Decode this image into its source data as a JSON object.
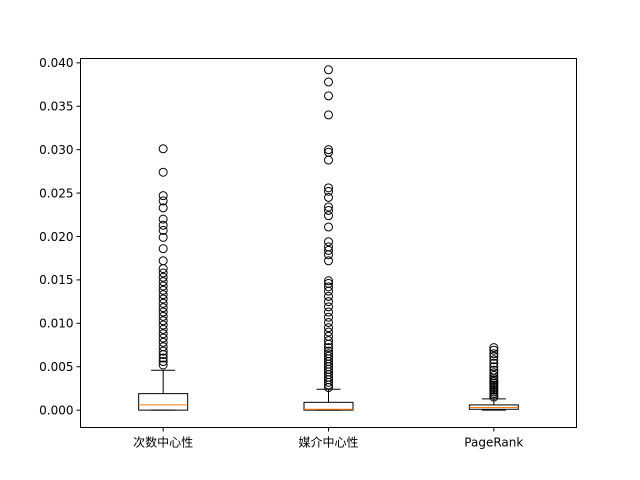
{
  "chart_data": {
    "type": "box",
    "categories": [
      "次数中心性",
      "媒介中心性",
      "PageRank"
    ],
    "ylim": [
      -0.002,
      0.0405
    ],
    "yticks": [
      0.0,
      0.005,
      0.01,
      0.015,
      0.02,
      0.025,
      0.03,
      0.035,
      0.04
    ],
    "ytick_labels": [
      "0.000",
      "0.005",
      "0.010",
      "0.015",
      "0.020",
      "0.025",
      "0.030",
      "0.035",
      "0.040"
    ],
    "grid": false,
    "boxes": [
      {
        "name": "次数中心性",
        "whisker_low": 0.0,
        "q1": 0.0,
        "median": 0.0006,
        "q3": 0.0019,
        "whisker_high": 0.0046,
        "outliers": [
          0.0052,
          0.0056,
          0.006,
          0.0064,
          0.0068,
          0.0073,
          0.0078,
          0.0083,
          0.0088,
          0.0093,
          0.0098,
          0.0103,
          0.0108,
          0.0113,
          0.0118,
          0.0123,
          0.0128,
          0.0133,
          0.0138,
          0.0143,
          0.0148,
          0.0153,
          0.0158,
          0.0163,
          0.0172,
          0.0186,
          0.0199,
          0.0207,
          0.0213,
          0.022,
          0.0233,
          0.0241,
          0.0247,
          0.0274,
          0.0301
        ]
      },
      {
        "name": "媒介中心性",
        "whisker_low": 0.0,
        "q1": 0.0,
        "median": 0.0001,
        "q3": 0.0009,
        "whisker_high": 0.0024,
        "outliers": [
          0.0026,
          0.0029,
          0.0032,
          0.0035,
          0.0038,
          0.0041,
          0.0044,
          0.0047,
          0.005,
          0.0053,
          0.0056,
          0.0059,
          0.0062,
          0.0065,
          0.0068,
          0.0072,
          0.0076,
          0.008,
          0.0085,
          0.009,
          0.0095,
          0.0101,
          0.0107,
          0.0113,
          0.0119,
          0.0125,
          0.0131,
          0.0137,
          0.0142,
          0.0146,
          0.0149,
          0.0172,
          0.0179,
          0.0184,
          0.0188,
          0.0194,
          0.0211,
          0.0224,
          0.023,
          0.0234,
          0.0245,
          0.0252,
          0.0256,
          0.0288,
          0.0297,
          0.03,
          0.034,
          0.0362,
          0.0378,
          0.0392
        ]
      },
      {
        "name": "PageRank",
        "whisker_low": 0.0,
        "q1": 0.0001,
        "median": 0.0003,
        "q3": 0.0006,
        "whisker_high": 0.0013,
        "outliers": [
          0.0015,
          0.0017,
          0.0019,
          0.0021,
          0.0023,
          0.0025,
          0.0027,
          0.0029,
          0.0031,
          0.0033,
          0.0035,
          0.0037,
          0.004,
          0.0043,
          0.0046,
          0.005,
          0.0054,
          0.0058,
          0.0062,
          0.0065,
          0.0069,
          0.0072
        ]
      }
    ],
    "colors": {
      "box": "#000000",
      "median": "#ff7f0e",
      "outlier": "#000000"
    }
  }
}
